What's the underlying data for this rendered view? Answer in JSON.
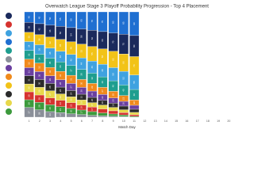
{
  "chart_data": {
    "type": "stacked-bar",
    "title": "Overwatch League Stage 3 Playoff Probability Progression - Top 4 Placement",
    "x_label": "Match Day",
    "categories": [
      "1",
      "2",
      "3",
      "4",
      "5",
      "6",
      "7",
      "8",
      "9",
      "10",
      "11",
      "12",
      "13",
      "14",
      "15",
      "16",
      "17",
      "18",
      "19",
      "20"
    ],
    "ylim": [
      0,
      400
    ],
    "series": [
      {
        "color": "#1f6fd1",
        "values": [
          40,
          45,
          50,
          55,
          60,
          65,
          70,
          75,
          80,
          85,
          90,
          null,
          null,
          null,
          null,
          null,
          null,
          null,
          null,
          null
        ]
      },
      {
        "color": "#1b2a5c",
        "values": [
          38,
          42,
          46,
          50,
          54,
          58,
          62,
          66,
          70,
          75,
          80,
          null,
          null,
          null,
          null,
          null,
          null,
          null,
          null,
          null
        ]
      },
      {
        "color": "#f2c318",
        "values": [
          35,
          38,
          42,
          45,
          48,
          52,
          55,
          58,
          62,
          66,
          70,
          null,
          null,
          null,
          null,
          null,
          null,
          null,
          null,
          null
        ]
      },
      {
        "color": "#3fa2e0",
        "values": [
          34,
          36,
          38,
          40,
          42,
          44,
          46,
          48,
          50,
          52,
          55,
          null,
          null,
          null,
          null,
          null,
          null,
          null,
          null,
          null
        ]
      },
      {
        "color": "#1e9e8f",
        "values": [
          33,
          34,
          35,
          36,
          37,
          38,
          39,
          40,
          40,
          40,
          40,
          null,
          null,
          null,
          null,
          null,
          null,
          null,
          null,
          null
        ]
      },
      {
        "color": "#f08a1c",
        "values": [
          32,
          32,
          32,
          32,
          31,
          30,
          29,
          27,
          25,
          22,
          20,
          null,
          null,
          null,
          null,
          null,
          null,
          null,
          null,
          null
        ]
      },
      {
        "color": "#6a3fa0",
        "values": [
          31,
          30,
          29,
          28,
          27,
          26,
          24,
          22,
          20,
          18,
          15,
          null,
          null,
          null,
          null,
          null,
          null,
          null,
          null,
          null
        ]
      },
      {
        "color": "#2b2b2b",
        "values": [
          31,
          30,
          28,
          26,
          24,
          22,
          20,
          18,
          16,
          14,
          12,
          null,
          null,
          null,
          null,
          null,
          null,
          null,
          null,
          null
        ]
      },
      {
        "color": "#e7d84a",
        "values": [
          30,
          29,
          27,
          24,
          22,
          19,
          17,
          15,
          13,
          11,
          9,
          null,
          null,
          null,
          null,
          null,
          null,
          null,
          null,
          null
        ]
      },
      {
        "color": "#d6332f",
        "values": [
          30,
          28,
          26,
          24,
          22,
          19,
          17,
          15,
          12,
          9,
          6,
          null,
          null,
          null,
          null,
          null,
          null,
          null,
          null,
          null
        ]
      },
      {
        "color": "#3c9a3c",
        "values": [
          29,
          28,
          26,
          23,
          20,
          17,
          14,
          11,
          8,
          6,
          3,
          null,
          null,
          null,
          null,
          null,
          null,
          null,
          null,
          null
        ]
      },
      {
        "color": "#8a8f99",
        "values": [
          37,
          28,
          23,
          17,
          13,
          10,
          7,
          5,
          4,
          2,
          0,
          null,
          null,
          null,
          null,
          null,
          null,
          null,
          null,
          null
        ]
      }
    ]
  }
}
